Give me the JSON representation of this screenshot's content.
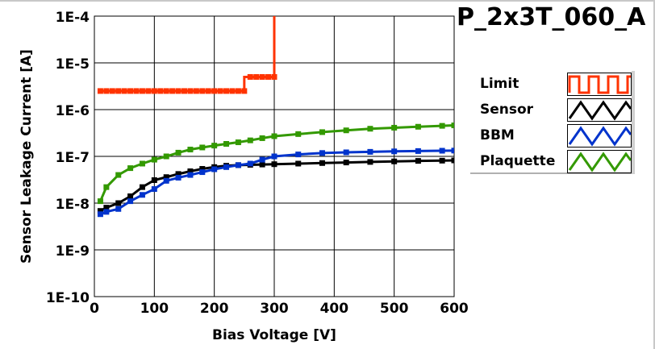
{
  "chart_data": {
    "type": "line",
    "title": "P_2x3T_060_A",
    "xlabel": "Bias Voltage [V]",
    "ylabel": "Sensor Leakage Current [A]",
    "xlim": [
      0,
      600
    ],
    "ylim": [
      1e-10,
      0.0001
    ],
    "yscale": "log",
    "grid": true,
    "legend_position": "right",
    "x_ticks": [
      "0",
      "100",
      "200",
      "300",
      "400",
      "500",
      "600"
    ],
    "y_ticks": [
      "1E-10",
      "1E-9",
      "1E-8",
      "1E-7",
      "1E-6",
      "1E-5",
      "1E-4"
    ],
    "series": [
      {
        "name": "Limit",
        "color": "#ff3300",
        "x": [
          10,
          250,
          250,
          300,
          300
        ],
        "y": [
          2.5e-06,
          2.5e-06,
          5e-06,
          5e-06,
          0.0001
        ],
        "step": true
      },
      {
        "name": "Sensor",
        "color": "#000000",
        "x": [
          10,
          20,
          40,
          60,
          80,
          100,
          120,
          140,
          160,
          180,
          200,
          220,
          240,
          260,
          280,
          300,
          340,
          380,
          420,
          460,
          500,
          540,
          580,
          600
        ],
        "y": [
          6.8e-09,
          8e-09,
          1e-08,
          1.4e-08,
          2.2e-08,
          3.1e-08,
          3.6e-08,
          4.2e-08,
          4.8e-08,
          5.4e-08,
          5.9e-08,
          6.3e-08,
          6.5e-08,
          6.6e-08,
          6.7e-08,
          6.8e-08,
          7e-08,
          7.2e-08,
          7.4e-08,
          7.6e-08,
          7.8e-08,
          8e-08,
          8.1e-08,
          8.2e-08
        ]
      },
      {
        "name": "BBM",
        "color": "#0033cc",
        "x": [
          10,
          20,
          40,
          60,
          80,
          100,
          120,
          140,
          160,
          180,
          200,
          220,
          240,
          260,
          280,
          300,
          340,
          380,
          420,
          460,
          500,
          540,
          580,
          600
        ],
        "y": [
          5.8e-09,
          6.5e-09,
          7.5e-09,
          1.1e-08,
          1.5e-08,
          2e-08,
          3e-08,
          3.5e-08,
          4e-08,
          4.6e-08,
          5.3e-08,
          5.9e-08,
          6.5e-08,
          7e-08,
          8.5e-08,
          1e-07,
          1.1e-07,
          1.18e-07,
          1.22e-07,
          1.25e-07,
          1.28e-07,
          1.3e-07,
          1.32e-07,
          1.33e-07
        ]
      },
      {
        "name": "Plaquette",
        "color": "#339900",
        "x": [
          10,
          20,
          40,
          60,
          80,
          100,
          120,
          140,
          160,
          180,
          200,
          220,
          240,
          260,
          280,
          300,
          340,
          380,
          420,
          460,
          500,
          540,
          580,
          600
        ],
        "y": [
          1.1e-08,
          2.2e-08,
          4e-08,
          5.6e-08,
          7e-08,
          8.5e-08,
          1e-07,
          1.2e-07,
          1.4e-07,
          1.55e-07,
          1.7e-07,
          1.85e-07,
          2e-07,
          2.2e-07,
          2.45e-07,
          2.7e-07,
          3e-07,
          3.3e-07,
          3.6e-07,
          3.9e-07,
          4.1e-07,
          4.3e-07,
          4.5e-07,
          4.6e-07
        ]
      }
    ]
  }
}
